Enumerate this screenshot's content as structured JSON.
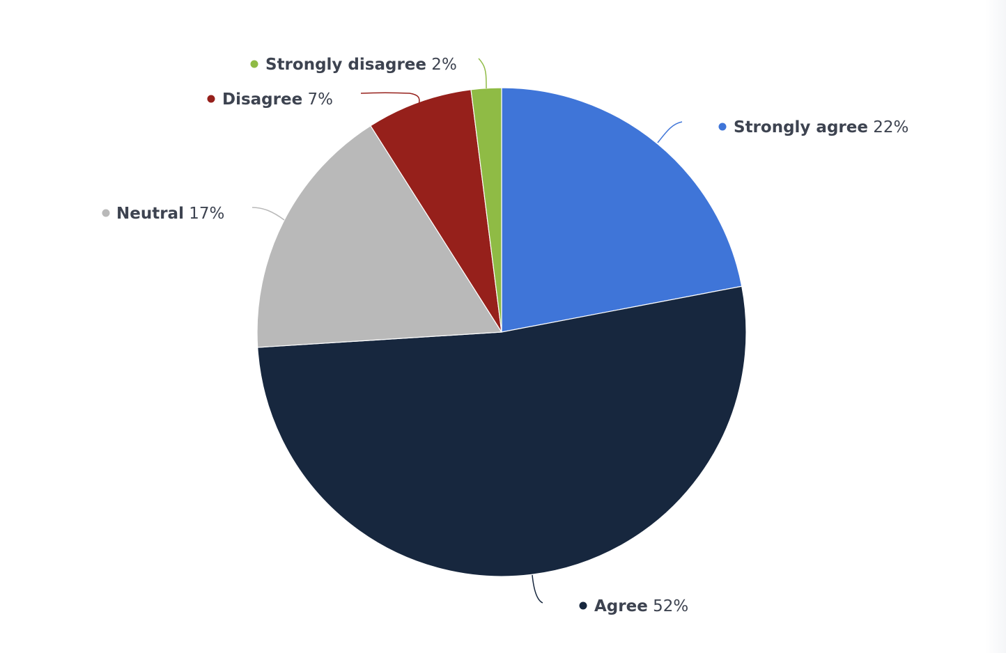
{
  "chart_data": {
    "type": "pie",
    "title": "",
    "unit": "%",
    "start_angle_deg": 0,
    "direction": "clockwise",
    "slices": [
      {
        "label": "Strongly agree",
        "value": 22,
        "value_label": "22%",
        "color": "#3f75d8"
      },
      {
        "label": "Agree",
        "value": 52,
        "value_label": "52%",
        "color": "#17273e"
      },
      {
        "label": "Neutral",
        "value": 17,
        "value_label": "17%",
        "color": "#b9b9b9"
      },
      {
        "label": "Disagree",
        "value": 7,
        "value_label": "7%",
        "color": "#96201b"
      },
      {
        "label": "Strongly disagree",
        "value": 2,
        "value_label": "2%",
        "color": "#8fbb45"
      }
    ],
    "legend": "none",
    "data_labels": "outside with leader lines"
  }
}
